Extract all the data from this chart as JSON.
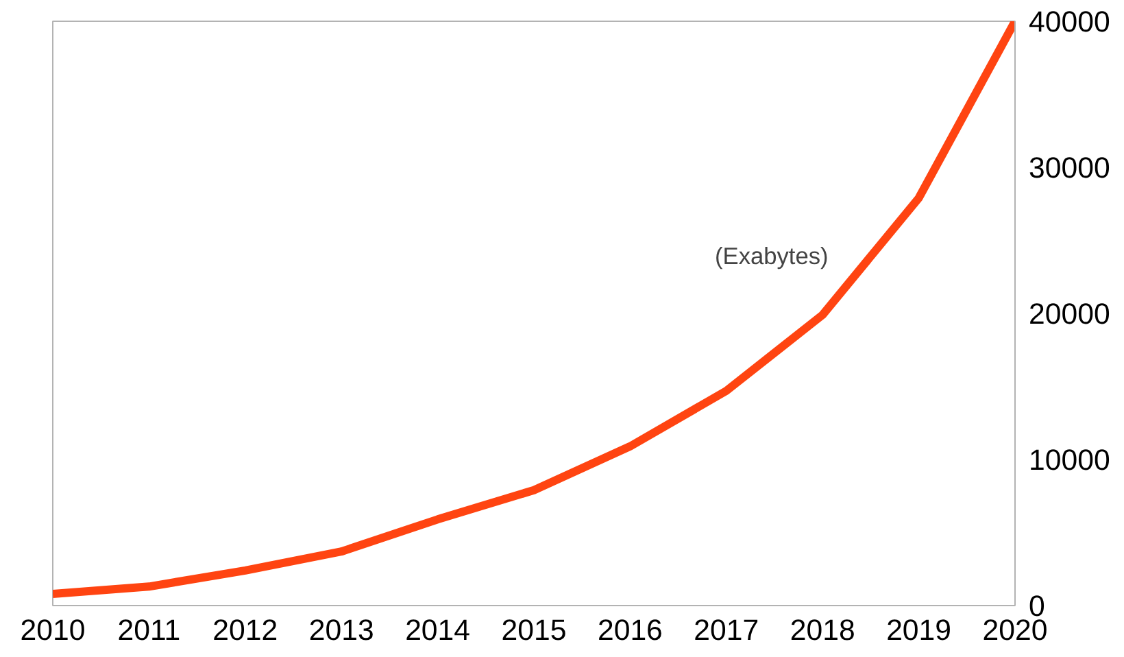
{
  "chart_data": {
    "type": "line",
    "x": [
      2010,
      2011,
      2012,
      2013,
      2014,
      2015,
      2016,
      2017,
      2018,
      2019,
      2020
    ],
    "series": [
      {
        "color": "#ff4411",
        "values": [
          800,
          1300,
          2400,
          3700,
          5900,
          7900,
          10900,
          14700,
          19900,
          27900,
          40000
        ]
      }
    ],
    "xlim": [
      2010,
      2020
    ],
    "xticks": [
      2010,
      2011,
      2012,
      2013,
      2014,
      2015,
      2016,
      2017,
      2018,
      2019,
      2020
    ],
    "ylim": [
      0,
      40000
    ],
    "yticks": [
      0,
      10000,
      20000,
      30000,
      40000
    ],
    "annotations": [
      "(Exabytes)"
    ],
    "grid": false,
    "marker": "none",
    "line_style": "solid"
  }
}
